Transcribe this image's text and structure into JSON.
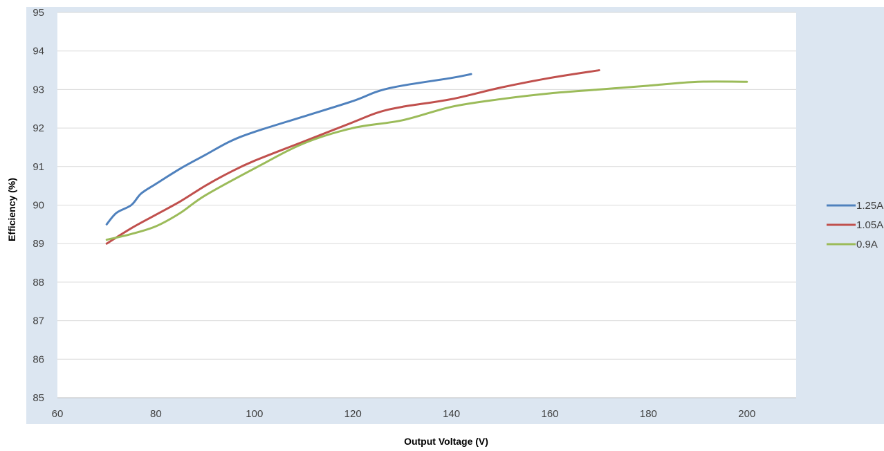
{
  "chart_data": {
    "type": "line",
    "title": "",
    "xlabel": "Output Voltage (V)",
    "ylabel": "Efficiency (%)",
    "xlim": [
      60,
      210
    ],
    "ylim": [
      85,
      95
    ],
    "x_ticks": [
      60,
      80,
      100,
      120,
      140,
      160,
      180,
      200
    ],
    "y_ticks": [
      85,
      86,
      87,
      88,
      89,
      90,
      91,
      92,
      93,
      94,
      95
    ],
    "grid": "horizontal",
    "legend_position": "right",
    "colors": {
      "plot_background": "#ffffff",
      "outer_background": "#dce6f1",
      "gridline": "#d9d9d9"
    },
    "series": [
      {
        "name": "1.25A",
        "color": "#4f81bd",
        "points": [
          [
            70,
            89.5
          ],
          [
            72,
            89.8
          ],
          [
            75,
            90.0
          ],
          [
            77,
            90.3
          ],
          [
            80,
            90.55
          ],
          [
            85,
            90.95
          ],
          [
            90,
            91.3
          ],
          [
            95,
            91.65
          ],
          [
            100,
            91.9
          ],
          [
            110,
            92.3
          ],
          [
            120,
            92.7
          ],
          [
            125,
            92.95
          ],
          [
            130,
            93.1
          ],
          [
            140,
            93.3
          ],
          [
            144,
            93.4
          ]
        ]
      },
      {
        "name": "1.05A",
        "color": "#c0504d",
        "points": [
          [
            70,
            89.0
          ],
          [
            75,
            89.4
          ],
          [
            80,
            89.75
          ],
          [
            85,
            90.1
          ],
          [
            90,
            90.5
          ],
          [
            95,
            90.85
          ],
          [
            100,
            91.15
          ],
          [
            110,
            91.65
          ],
          [
            120,
            92.15
          ],
          [
            125,
            92.4
          ],
          [
            130,
            92.55
          ],
          [
            140,
            92.75
          ],
          [
            150,
            93.05
          ],
          [
            160,
            93.3
          ],
          [
            170,
            93.5
          ]
        ]
      },
      {
        "name": "0.9A",
        "color": "#9bbb59",
        "points": [
          [
            70,
            89.1
          ],
          [
            75,
            89.25
          ],
          [
            80,
            89.45
          ],
          [
            85,
            89.8
          ],
          [
            90,
            90.25
          ],
          [
            100,
            90.95
          ],
          [
            110,
            91.6
          ],
          [
            120,
            92.0
          ],
          [
            130,
            92.2
          ],
          [
            140,
            92.55
          ],
          [
            150,
            92.75
          ],
          [
            160,
            92.9
          ],
          [
            170,
            93.0
          ],
          [
            180,
            93.1
          ],
          [
            190,
            93.2
          ],
          [
            200,
            93.2
          ]
        ]
      }
    ]
  }
}
